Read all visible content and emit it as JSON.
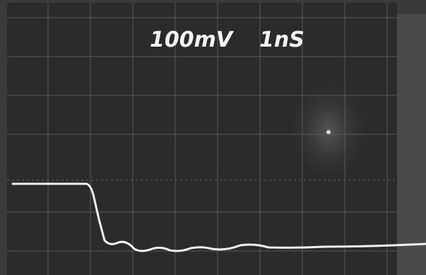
{
  "screen": {
    "volts_per_div": "100mV",
    "time_per_div": "1nS"
  }
}
